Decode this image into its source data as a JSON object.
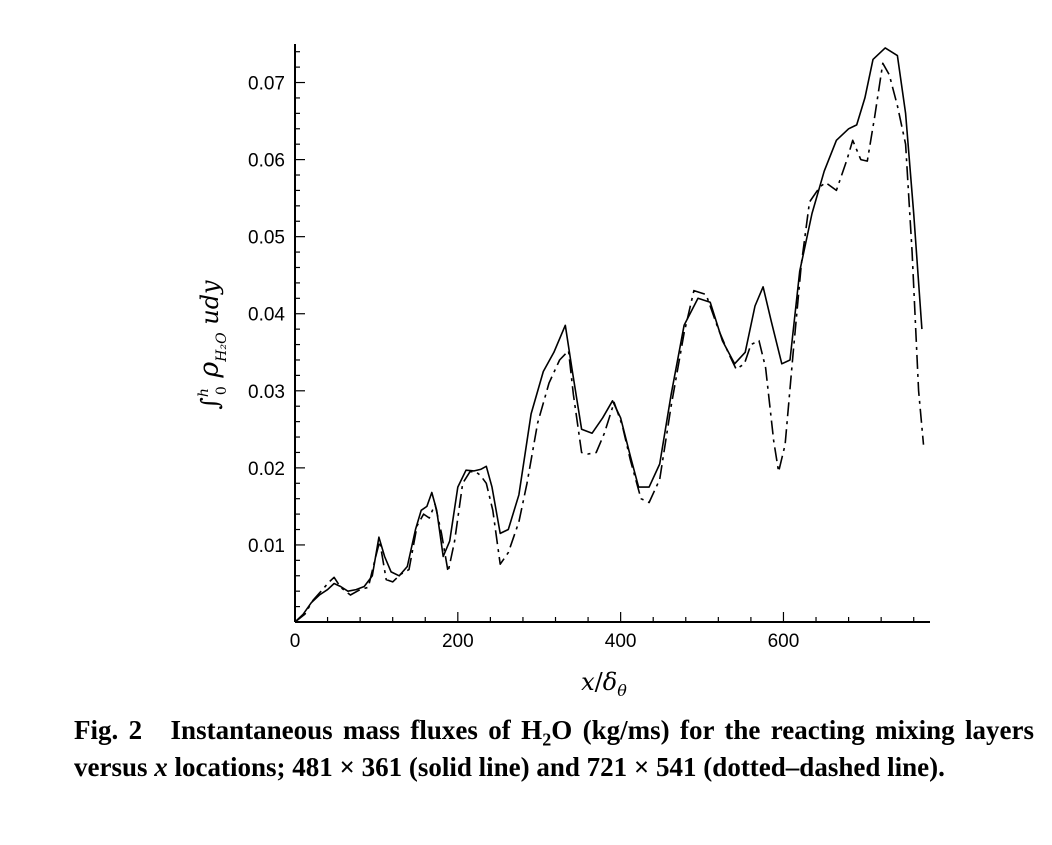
{
  "chart_data": {
    "type": "line",
    "xlabel": "x/δθ",
    "ylabel": "∫₀ʰ ρ H₂O u dy",
    "xlim": [
      0,
      780
    ],
    "ylim": [
      0,
      0.075
    ],
    "x_ticks": [
      "0",
      "200",
      "400",
      "600"
    ],
    "y_ticks": [
      "0.01",
      "0.02",
      "0.03",
      "0.04",
      "0.05",
      "0.06",
      "0.07"
    ],
    "grid": false,
    "series": [
      {
        "style": "solid",
        "points": [
          [
            0,
            0
          ],
          [
            10,
            0.001
          ],
          [
            20,
            0.0025
          ],
          [
            30,
            0.0035
          ],
          [
            40,
            0.0042
          ],
          [
            48,
            0.005
          ],
          [
            56,
            0.0046
          ],
          [
            65,
            0.004
          ],
          [
            75,
            0.0042
          ],
          [
            85,
            0.0046
          ],
          [
            95,
            0.006
          ],
          [
            103,
            0.011
          ],
          [
            110,
            0.0085
          ],
          [
            118,
            0.0065
          ],
          [
            128,
            0.006
          ],
          [
            138,
            0.0072
          ],
          [
            148,
            0.012
          ],
          [
            155,
            0.0145
          ],
          [
            162,
            0.015
          ],
          [
            168,
            0.0168
          ],
          [
            174,
            0.0145
          ],
          [
            182,
            0.0085
          ],
          [
            190,
            0.0105
          ],
          [
            200,
            0.0175
          ],
          [
            210,
            0.0197
          ],
          [
            220,
            0.0196
          ],
          [
            228,
            0.0198
          ],
          [
            235,
            0.0202
          ],
          [
            242,
            0.0175
          ],
          [
            252,
            0.0115
          ],
          [
            262,
            0.012
          ],
          [
            275,
            0.0165
          ],
          [
            290,
            0.027
          ],
          [
            305,
            0.0325
          ],
          [
            318,
            0.035
          ],
          [
            332,
            0.0385
          ],
          [
            340,
            0.033
          ],
          [
            352,
            0.025
          ],
          [
            365,
            0.0245
          ],
          [
            378,
            0.0265
          ],
          [
            390,
            0.0287
          ],
          [
            400,
            0.0265
          ],
          [
            412,
            0.0215
          ],
          [
            422,
            0.0175
          ],
          [
            435,
            0.0175
          ],
          [
            448,
            0.0205
          ],
          [
            462,
            0.0295
          ],
          [
            478,
            0.0385
          ],
          [
            495,
            0.042
          ],
          [
            510,
            0.0415
          ],
          [
            525,
            0.0365
          ],
          [
            540,
            0.0335
          ],
          [
            553,
            0.035
          ],
          [
            565,
            0.041
          ],
          [
            575,
            0.0435
          ],
          [
            585,
            0.039
          ],
          [
            598,
            0.0335
          ],
          [
            608,
            0.034
          ],
          [
            620,
            0.0455
          ],
          [
            635,
            0.053
          ],
          [
            650,
            0.0585
          ],
          [
            665,
            0.0625
          ],
          [
            680,
            0.064
          ],
          [
            690,
            0.0645
          ],
          [
            700,
            0.068
          ],
          [
            710,
            0.073
          ],
          [
            725,
            0.0745
          ],
          [
            740,
            0.0735
          ],
          [
            750,
            0.066
          ],
          [
            760,
            0.053
          ],
          [
            770,
            0.038
          ]
        ]
      },
      {
        "style": "dash-dot",
        "points": [
          [
            0,
            0
          ],
          [
            12,
            0.001
          ],
          [
            22,
            0.0028
          ],
          [
            32,
            0.004
          ],
          [
            42,
            0.0052
          ],
          [
            48,
            0.0058
          ],
          [
            56,
            0.0045
          ],
          [
            68,
            0.0035
          ],
          [
            80,
            0.0042
          ],
          [
            90,
            0.0045
          ],
          [
            98,
            0.008
          ],
          [
            104,
            0.0105
          ],
          [
            112,
            0.0055
          ],
          [
            120,
            0.0052
          ],
          [
            130,
            0.0062
          ],
          [
            140,
            0.0068
          ],
          [
            150,
            0.0125
          ],
          [
            158,
            0.014
          ],
          [
            165,
            0.0135
          ],
          [
            172,
            0.0153
          ],
          [
            180,
            0.0115
          ],
          [
            188,
            0.0065
          ],
          [
            196,
            0.0105
          ],
          [
            206,
            0.018
          ],
          [
            215,
            0.0195
          ],
          [
            222,
            0.0195
          ],
          [
            228,
            0.019
          ],
          [
            235,
            0.018
          ],
          [
            243,
            0.0145
          ],
          [
            252,
            0.0075
          ],
          [
            262,
            0.009
          ],
          [
            275,
            0.013
          ],
          [
            285,
            0.018
          ],
          [
            298,
            0.0258
          ],
          [
            312,
            0.031
          ],
          [
            325,
            0.034
          ],
          [
            336,
            0.0352
          ],
          [
            342,
            0.0295
          ],
          [
            352,
            0.022
          ],
          [
            360,
            0.0218
          ],
          [
            370,
            0.022
          ],
          [
            380,
            0.0245
          ],
          [
            392,
            0.0285
          ],
          [
            402,
            0.0255
          ],
          [
            412,
            0.021
          ],
          [
            425,
            0.016
          ],
          [
            435,
            0.0155
          ],
          [
            448,
            0.0185
          ],
          [
            462,
            0.028
          ],
          [
            478,
            0.0375
          ],
          [
            490,
            0.043
          ],
          [
            505,
            0.0425
          ],
          [
            520,
            0.038
          ],
          [
            532,
            0.035
          ],
          [
            542,
            0.0328
          ],
          [
            552,
            0.0335
          ],
          [
            560,
            0.036
          ],
          [
            570,
            0.0365
          ],
          [
            578,
            0.033
          ],
          [
            588,
            0.0235
          ],
          [
            594,
            0.0195
          ],
          [
            602,
            0.023
          ],
          [
            612,
            0.035
          ],
          [
            622,
            0.0465
          ],
          [
            632,
            0.0545
          ],
          [
            645,
            0.0565
          ],
          [
            652,
            0.057
          ],
          [
            665,
            0.056
          ],
          [
            678,
            0.06
          ],
          [
            685,
            0.0625
          ],
          [
            695,
            0.06
          ],
          [
            703,
            0.0598
          ],
          [
            712,
            0.0655
          ],
          [
            722,
            0.0725
          ],
          [
            730,
            0.071
          ],
          [
            740,
            0.067
          ],
          [
            750,
            0.062
          ],
          [
            758,
            0.048
          ],
          [
            766,
            0.03
          ],
          [
            772,
            0.023
          ]
        ]
      }
    ]
  },
  "caption": {
    "fig_label": "Fig. 2",
    "text_part1": "Instantaneous mass fluxes of H",
    "sub_2": "2",
    "text_part2": "O (kg/ms) for the reacting mixing layers versus ",
    "x_var": "x",
    "text_part3": " locations; 481 × 361 (solid line) and 721 × 541 (dotted–dashed line)."
  }
}
